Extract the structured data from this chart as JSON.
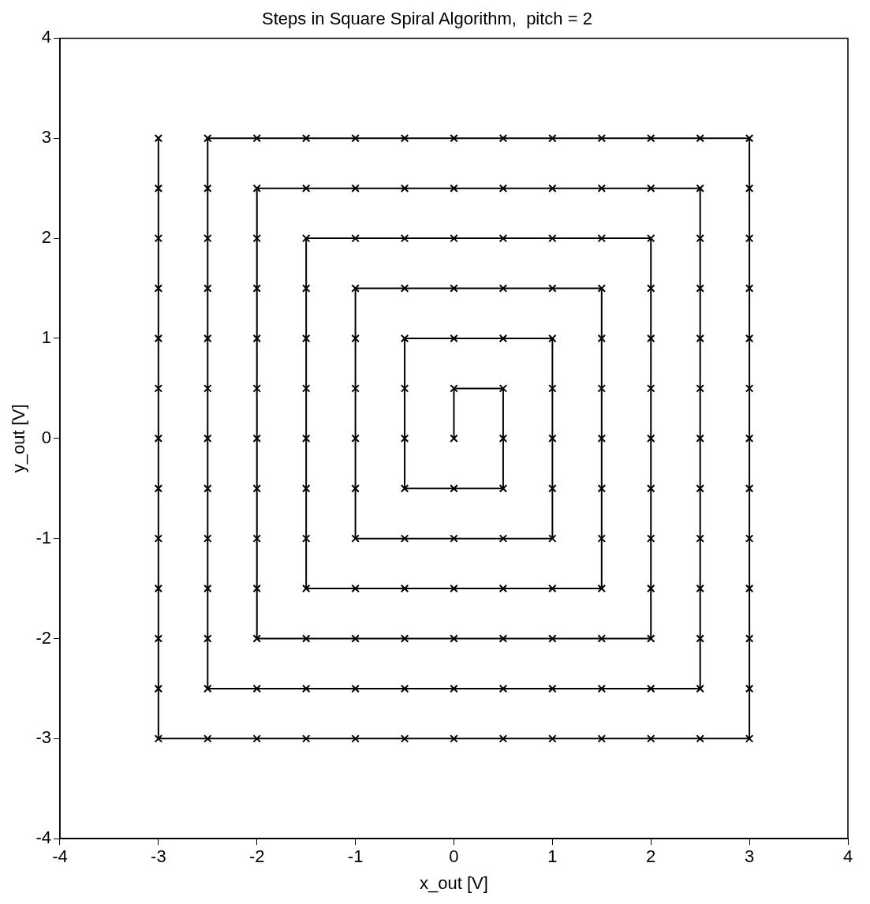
{
  "chart_data": {
    "type": "line",
    "title": "Steps in Square Spiral Algorithm,  pitch = 2",
    "xlabel": "x_out [V]",
    "ylabel": "y_out [V]",
    "xlim": [
      -4,
      4
    ],
    "ylim": [
      -4,
      4
    ],
    "xticks": [
      -4,
      -3,
      -2,
      -1,
      0,
      1,
      2,
      3,
      4
    ],
    "yticks": [
      -4,
      -3,
      -2,
      -1,
      0,
      1,
      2,
      3,
      4
    ],
    "grid": false,
    "legend": false,
    "marker": "cross",
    "line_style": "solid",
    "series": [
      {
        "color": "#000000",
        "x": [
          0,
          0,
          0.5,
          0.5,
          0.5,
          0,
          -0.5,
          -0.5,
          -0.5,
          -0.5,
          0,
          0.5,
          1,
          1,
          1,
          1,
          1,
          0.5,
          0,
          -0.5,
          -1,
          -1,
          -1,
          -1,
          -1,
          -1,
          -0.5,
          0,
          0.5,
          1,
          1.5,
          1.5,
          1.5,
          1.5,
          1.5,
          1.5,
          1.5,
          1,
          0.5,
          0,
          -0.5,
          -1,
          -1.5,
          -1.5,
          -1.5,
          -1.5,
          -1.5,
          -1.5,
          -1.5,
          -1.5,
          -1,
          -0.5,
          0,
          0.5,
          1,
          1.5,
          2,
          2,
          2,
          2,
          2,
          2,
          2,
          2,
          2,
          1.5,
          1,
          0.5,
          0,
          -0.5,
          -1,
          -1.5,
          -2,
          -2,
          -2,
          -2,
          -2,
          -2,
          -2,
          -2,
          -2,
          -2,
          -1.5,
          -1,
          -0.5,
          0,
          0.5,
          1,
          1.5,
          2,
          2.5,
          2.5,
          2.5,
          2.5,
          2.5,
          2.5,
          2.5,
          2.5,
          2.5,
          2.5,
          2.5,
          2,
          1.5,
          1,
          0.5,
          0,
          -0.5,
          -1,
          -1.5,
          -2,
          -2.5,
          -2.5,
          -2.5,
          -2.5,
          -2.5,
          -2.5,
          -2.5,
          -2.5,
          -2.5,
          -2.5,
          -2.5,
          -2.5,
          -2,
          -1.5,
          -1,
          -0.5,
          0,
          0.5,
          1,
          1.5,
          2,
          2.5,
          3,
          3,
          3,
          3,
          3,
          3,
          3,
          3,
          3,
          3,
          3,
          3,
          3,
          2.5,
          2,
          1.5,
          1,
          0.5,
          0,
          -0.5,
          -1,
          -1.5,
          -2,
          -2.5,
          -3,
          -3,
          -3,
          -3,
          -3,
          -3,
          -3,
          -3,
          -3,
          -3,
          -3,
          -3,
          -3
        ],
        "values": [
          0,
          0.5,
          0.5,
          0,
          -0.5,
          -0.5,
          -0.5,
          0,
          0.5,
          1,
          1,
          1,
          1,
          0.5,
          0,
          -0.5,
          -1,
          -1,
          -1,
          -1,
          -1,
          -0.5,
          0,
          0.5,
          1,
          1.5,
          1.5,
          1.5,
          1.5,
          1.5,
          1.5,
          1,
          0.5,
          0,
          -0.5,
          -1,
          -1.5,
          -1.5,
          -1.5,
          -1.5,
          -1.5,
          -1.5,
          -1.5,
          -1,
          -0.5,
          0,
          0.5,
          1,
          1.5,
          2,
          2,
          2,
          2,
          2,
          2,
          2,
          2,
          1.5,
          1,
          0.5,
          0,
          -0.5,
          -1,
          -1.5,
          -2,
          -2,
          -2,
          -2,
          -2,
          -2,
          -2,
          -2,
          -2,
          -1.5,
          -1,
          -0.5,
          0,
          0.5,
          1,
          1.5,
          2,
          2.5,
          2.5,
          2.5,
          2.5,
          2.5,
          2.5,
          2.5,
          2.5,
          2.5,
          2.5,
          2,
          1.5,
          1,
          0.5,
          0,
          -0.5,
          -1,
          -1.5,
          -2,
          -2.5,
          -2.5,
          -2.5,
          -2.5,
          -2.5,
          -2.5,
          -2.5,
          -2.5,
          -2.5,
          -2.5,
          -2.5,
          -2,
          -1.5,
          -1,
          -0.5,
          0,
          0.5,
          1,
          1.5,
          2,
          2.5,
          3,
          3,
          3,
          3,
          3,
          3,
          3,
          3,
          3,
          3,
          3,
          3,
          2.5,
          2,
          1.5,
          1,
          0.5,
          0,
          -0.5,
          -1,
          -1.5,
          -2,
          -2.5,
          -3,
          -3,
          -3,
          -3,
          -3,
          -3,
          -3,
          -3,
          -3,
          -3,
          -3,
          -3,
          -3,
          -2.5,
          -2,
          -1.5,
          -1,
          -0.5,
          0,
          0.5,
          1,
          1.5,
          2,
          2.5,
          3
        ]
      }
    ]
  }
}
